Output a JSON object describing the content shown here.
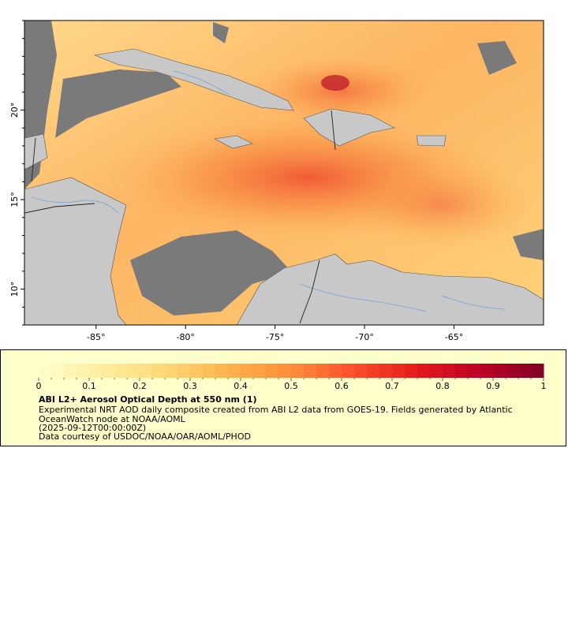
{
  "map": {
    "xaxis_ticks": [
      "-85°",
      "-80°",
      "-75°",
      "-70°",
      "-65°"
    ],
    "xaxis_values": [
      -85,
      -80,
      -75,
      -70,
      -65
    ],
    "yaxis_ticks": [
      "20°",
      "15°",
      "10°"
    ],
    "yaxis_values": [
      20,
      15,
      10
    ],
    "lon_range": [
      -89,
      -60
    ],
    "lat_range": [
      8,
      25
    ],
    "land_color": "#c8c8c8",
    "nodata_color": "#7a7a7a",
    "border_color": "#555555",
    "river_color": "#6f9fd0"
  },
  "colorbar": {
    "tick_labels": [
      "0",
      "0.1",
      "0.2",
      "0.3",
      "0.4",
      "0.5",
      "0.6",
      "0.7",
      "0.8",
      "0.9",
      "1"
    ],
    "range": [
      0,
      1
    ],
    "colors": [
      "#ffffcc",
      "#ffeda0",
      "#fed976",
      "#feb24c",
      "#fd8d3c",
      "#fc4e2a",
      "#e31a1c",
      "#bd0026",
      "#800026"
    ]
  },
  "legend": {
    "title": "ABI L2+ Aerosol Optical Depth at 550 nm (1)",
    "description": "Experimental NRT AOD daily composite created from ABI L2 data from GOES-19. Fields generated by Atlantic OceanWatch node at NOAA/AOML",
    "date": "(2025-09-12T00:00:00Z)",
    "credit": "Data courtesy of USDOC/NOAA/OAR/AOML/PHOD"
  }
}
